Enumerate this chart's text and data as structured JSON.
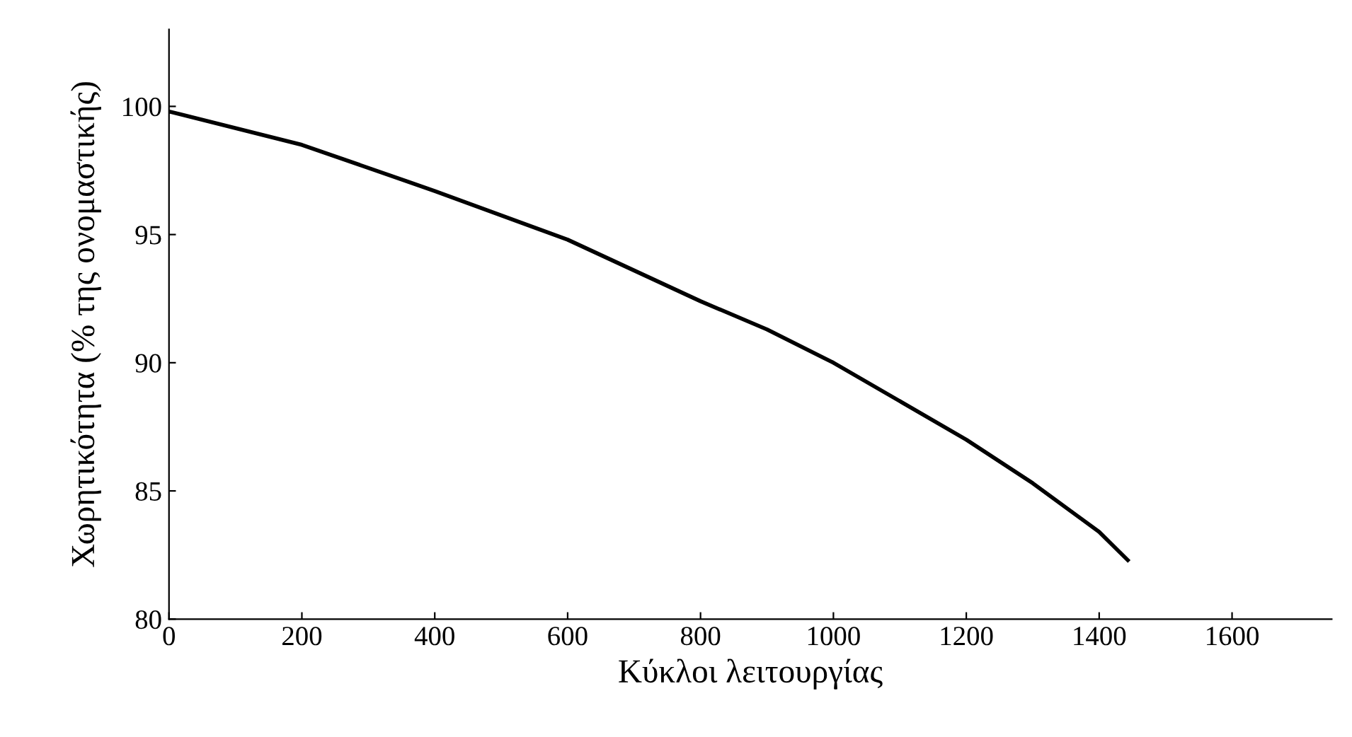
{
  "chart_data": {
    "type": "line",
    "xlabel": "Κύκλοι λειτουργίας",
    "ylabel": "Χωρητικότητα (% της ονομαστικής)",
    "x": [
      0,
      200,
      400,
      600,
      800,
      900,
      1000,
      1100,
      1200,
      1300,
      1400,
      1443
    ],
    "series": [
      {
        "color": "#000000",
        "values": [
          99.8,
          98.5,
          96.7,
          94.8,
          92.4,
          91.3,
          90.0,
          88.5,
          87.0,
          85.3,
          83.4,
          82.3
        ]
      }
    ],
    "xlim": [
      0,
      1750
    ],
    "ylim": [
      80,
      103
    ],
    "xticks": [
      0,
      200,
      400,
      600,
      800,
      1000,
      1200,
      1400,
      1600
    ],
    "yticks": [
      80,
      85,
      90,
      95,
      100
    ],
    "grid": false,
    "marker": "none",
    "line_style": "solid"
  }
}
